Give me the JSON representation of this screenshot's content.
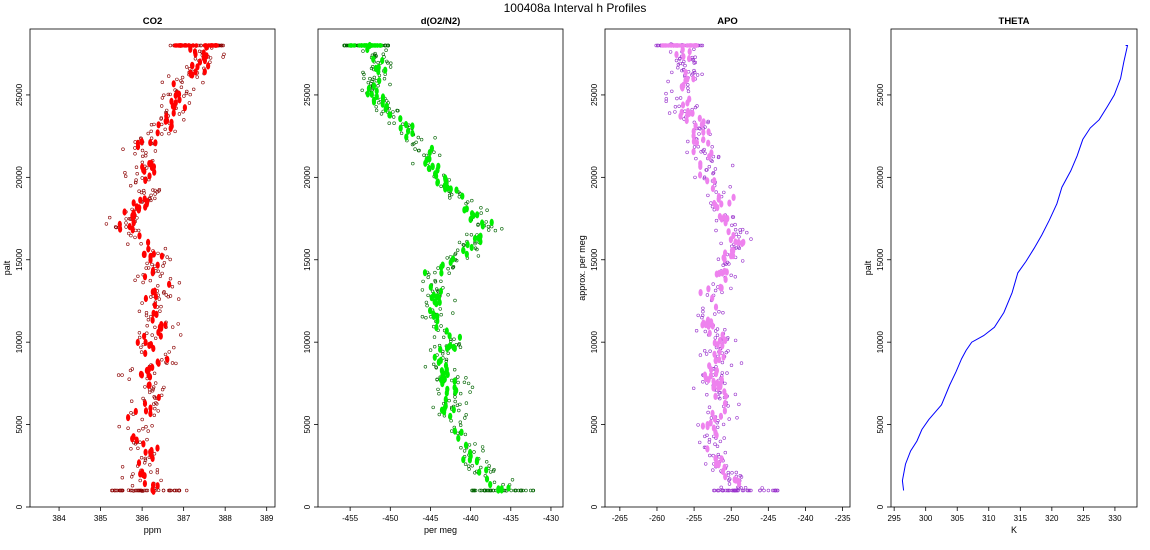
{
  "figure": {
    "title": "100408a   Interval h Profiles"
  },
  "chart_data": [
    {
      "type": "scatter",
      "title": "CO2",
      "xlabel": "ppm",
      "ylabel": "palt",
      "xlim": [
        383.3,
        389.2
      ],
      "ylim": [
        0,
        29000
      ],
      "xticks": [
        384,
        385,
        386,
        387,
        388,
        389
      ],
      "yticks": [
        0,
        5000,
        10000,
        15000,
        20000,
        25000
      ],
      "colors": {
        "raw": "#8b0000",
        "avg": "#ff0000"
      },
      "profile": [
        [
          386.2,
          1000
        ],
        [
          386.0,
          2000
        ],
        [
          386.2,
          3000
        ],
        [
          386.0,
          4000
        ],
        [
          385.7,
          5000
        ],
        [
          386.1,
          6000
        ],
        [
          386.3,
          7000
        ],
        [
          386.0,
          8000
        ],
        [
          386.4,
          9000
        ],
        [
          386.1,
          10000
        ],
        [
          386.5,
          11000
        ],
        [
          386.1,
          12000
        ],
        [
          386.5,
          13000
        ],
        [
          386.2,
          14000
        ],
        [
          386.4,
          15000
        ],
        [
          386.0,
          16000
        ],
        [
          385.6,
          17000
        ],
        [
          385.9,
          18000
        ],
        [
          386.1,
          19000
        ],
        [
          385.9,
          20000
        ],
        [
          386.3,
          21000
        ],
        [
          386.0,
          22000
        ],
        [
          386.6,
          23000
        ],
        [
          386.8,
          24000
        ],
        [
          386.9,
          25000
        ],
        [
          387.1,
          26000
        ],
        [
          387.5,
          27000
        ],
        [
          387.3,
          28000
        ]
      ],
      "xjitter": 0.85
    },
    {
      "type": "scatter",
      "title": "d(O2/N2)",
      "xlabel": "per meg",
      "ylabel": "",
      "xlim": [
        -459,
        -428.5
      ],
      "ylim": [
        0,
        29000
      ],
      "xticks": [
        -455,
        -450,
        -445,
        -440,
        -435,
        -430
      ],
      "yticks": [
        0,
        5000,
        10000,
        15000,
        20000,
        25000
      ],
      "colors": {
        "raw": "#006400",
        "avg": "#00ee00"
      },
      "profile": [
        [
          -436,
          1000
        ],
        [
          -438,
          2000
        ],
        [
          -440,
          3000
        ],
        [
          -441,
          4000
        ],
        [
          -442,
          5000
        ],
        [
          -443,
          6000
        ],
        [
          -442,
          7000
        ],
        [
          -443,
          8000
        ],
        [
          -444,
          9000
        ],
        [
          -442,
          10000
        ],
        [
          -444,
          11000
        ],
        [
          -445,
          12000
        ],
        [
          -444,
          13000
        ],
        [
          -445,
          14000
        ],
        [
          -442,
          15000
        ],
        [
          -440,
          16000
        ],
        [
          -438,
          17000
        ],
        [
          -440,
          18000
        ],
        [
          -442,
          19000
        ],
        [
          -444,
          20000
        ],
        [
          -445,
          21000
        ],
        [
          -446,
          22000
        ],
        [
          -448,
          23000
        ],
        [
          -450,
          24000
        ],
        [
          -452,
          25000
        ],
        [
          -452,
          26000
        ],
        [
          -451,
          27000
        ],
        [
          -453,
          28000
        ]
      ],
      "xjitter": 3.5
    },
    {
      "type": "scatter",
      "title": "APO",
      "xlabel": "",
      "ylabel": "approx. per meg",
      "xlim": [
        -267,
        -234
      ],
      "ylim": [
        0,
        29000
      ],
      "xticks": [
        -265,
        -260,
        -255,
        -250,
        -245,
        -240,
        -235
      ],
      "yticks": [
        0,
        5000,
        10000,
        15000,
        20000,
        25000
      ],
      "colors": {
        "raw": "#9932cc",
        "avg": "#ee82ee"
      },
      "profile": [
        [
          -248,
          1000
        ],
        [
          -251,
          2000
        ],
        [
          -252,
          3000
        ],
        [
          -252,
          4000
        ],
        [
          -253,
          5000
        ],
        [
          -251,
          6000
        ],
        [
          -252,
          7000
        ],
        [
          -252,
          8000
        ],
        [
          -252,
          9000
        ],
        [
          -251,
          10000
        ],
        [
          -253,
          11000
        ],
        [
          -252,
          12000
        ],
        [
          -253,
          13000
        ],
        [
          -251,
          14000
        ],
        [
          -250,
          15000
        ],
        [
          -249,
          16000
        ],
        [
          -250,
          17000
        ],
        [
          -252,
          18000
        ],
        [
          -251,
          19000
        ],
        [
          -253,
          20000
        ],
        [
          -253,
          21000
        ],
        [
          -254,
          22000
        ],
        [
          -254,
          23000
        ],
        [
          -256,
          24000
        ],
        [
          -257,
          25000
        ],
        [
          -256,
          26000
        ],
        [
          -256,
          27000
        ],
        [
          -257,
          28000
        ]
      ],
      "xjitter": 4.0
    },
    {
      "type": "line",
      "title": "THETA",
      "xlabel": "K",
      "ylabel": "palt",
      "xlim": [
        294.5,
        333.5
      ],
      "ylim": [
        0,
        29000
      ],
      "xticks": [
        295,
        300,
        305,
        310,
        315,
        320,
        325,
        330
      ],
      "yticks": [
        0,
        5000,
        10000,
        15000,
        20000,
        25000
      ],
      "colors": {
        "line": "#0000ff"
      },
      "x": [
        296.5,
        296.3,
        296.8,
        297.6,
        298.6,
        299.4,
        300.5,
        301.6,
        302.5,
        303.8,
        304.8,
        305.7,
        306.4,
        307.3,
        309.2,
        310.9,
        312.4,
        313.7,
        314.6,
        315.9,
        317.2,
        318.4,
        319.6,
        320.8,
        321.6,
        323.0,
        324.0,
        324.9,
        326.1,
        327.5,
        328.8,
        329.9,
        330.9,
        331.4,
        332.0,
        331.7
      ],
      "y": [
        1000,
        1600,
        2600,
        3400,
        4000,
        4700,
        5300,
        5800,
        6200,
        7400,
        8200,
        9000,
        9500,
        10000,
        10400,
        10900,
        11800,
        13000,
        14200,
        14900,
        15700,
        16500,
        17400,
        18400,
        19400,
        20400,
        21300,
        22300,
        23000,
        23500,
        24300,
        25000,
        26000,
        27000,
        28000,
        28000
      ]
    }
  ]
}
